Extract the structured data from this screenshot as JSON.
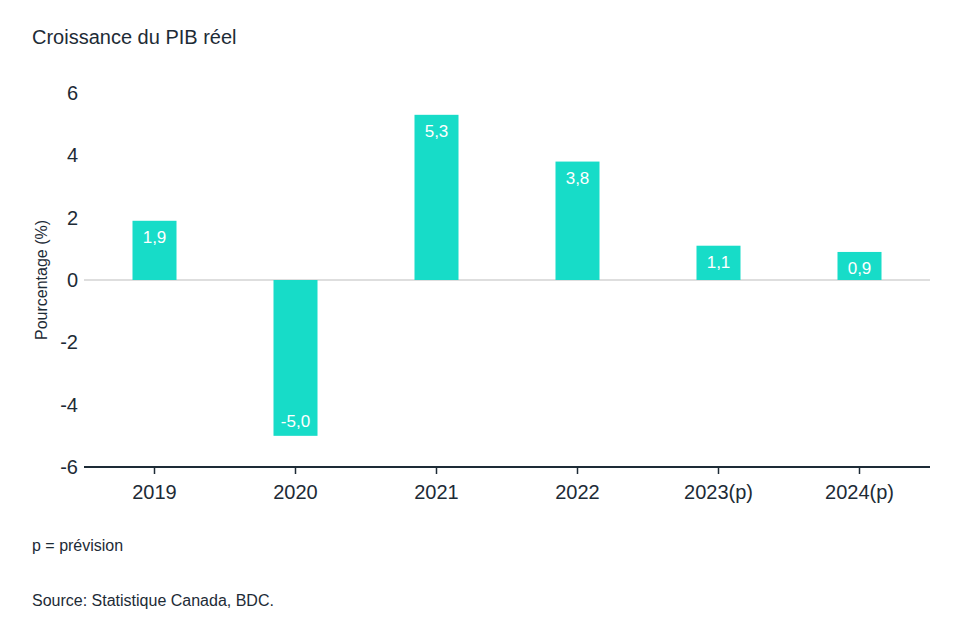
{
  "chart_data": {
    "type": "bar",
    "title": "Croissance du PIB réel",
    "y_label": "Pourcentage (%)",
    "categories": [
      "2019",
      "2020",
      "2021",
      "2022",
      "2023(p)",
      "2024(p)"
    ],
    "values": [
      1.9,
      -5.0,
      5.3,
      3.8,
      1.1,
      0.9
    ],
    "value_labels": [
      "1,9",
      "-5,0",
      "5,3",
      "3,8",
      "1,1",
      "0,9"
    ],
    "color": "#17dcc8",
    "ylim": [
      -6,
      6
    ],
    "yticks": [
      -6,
      -4,
      -2,
      0,
      2,
      4,
      6
    ],
    "grid": false,
    "data_labels": true,
    "note": "p = prévision",
    "source": "Source: Statistique Canada, BDC."
  }
}
